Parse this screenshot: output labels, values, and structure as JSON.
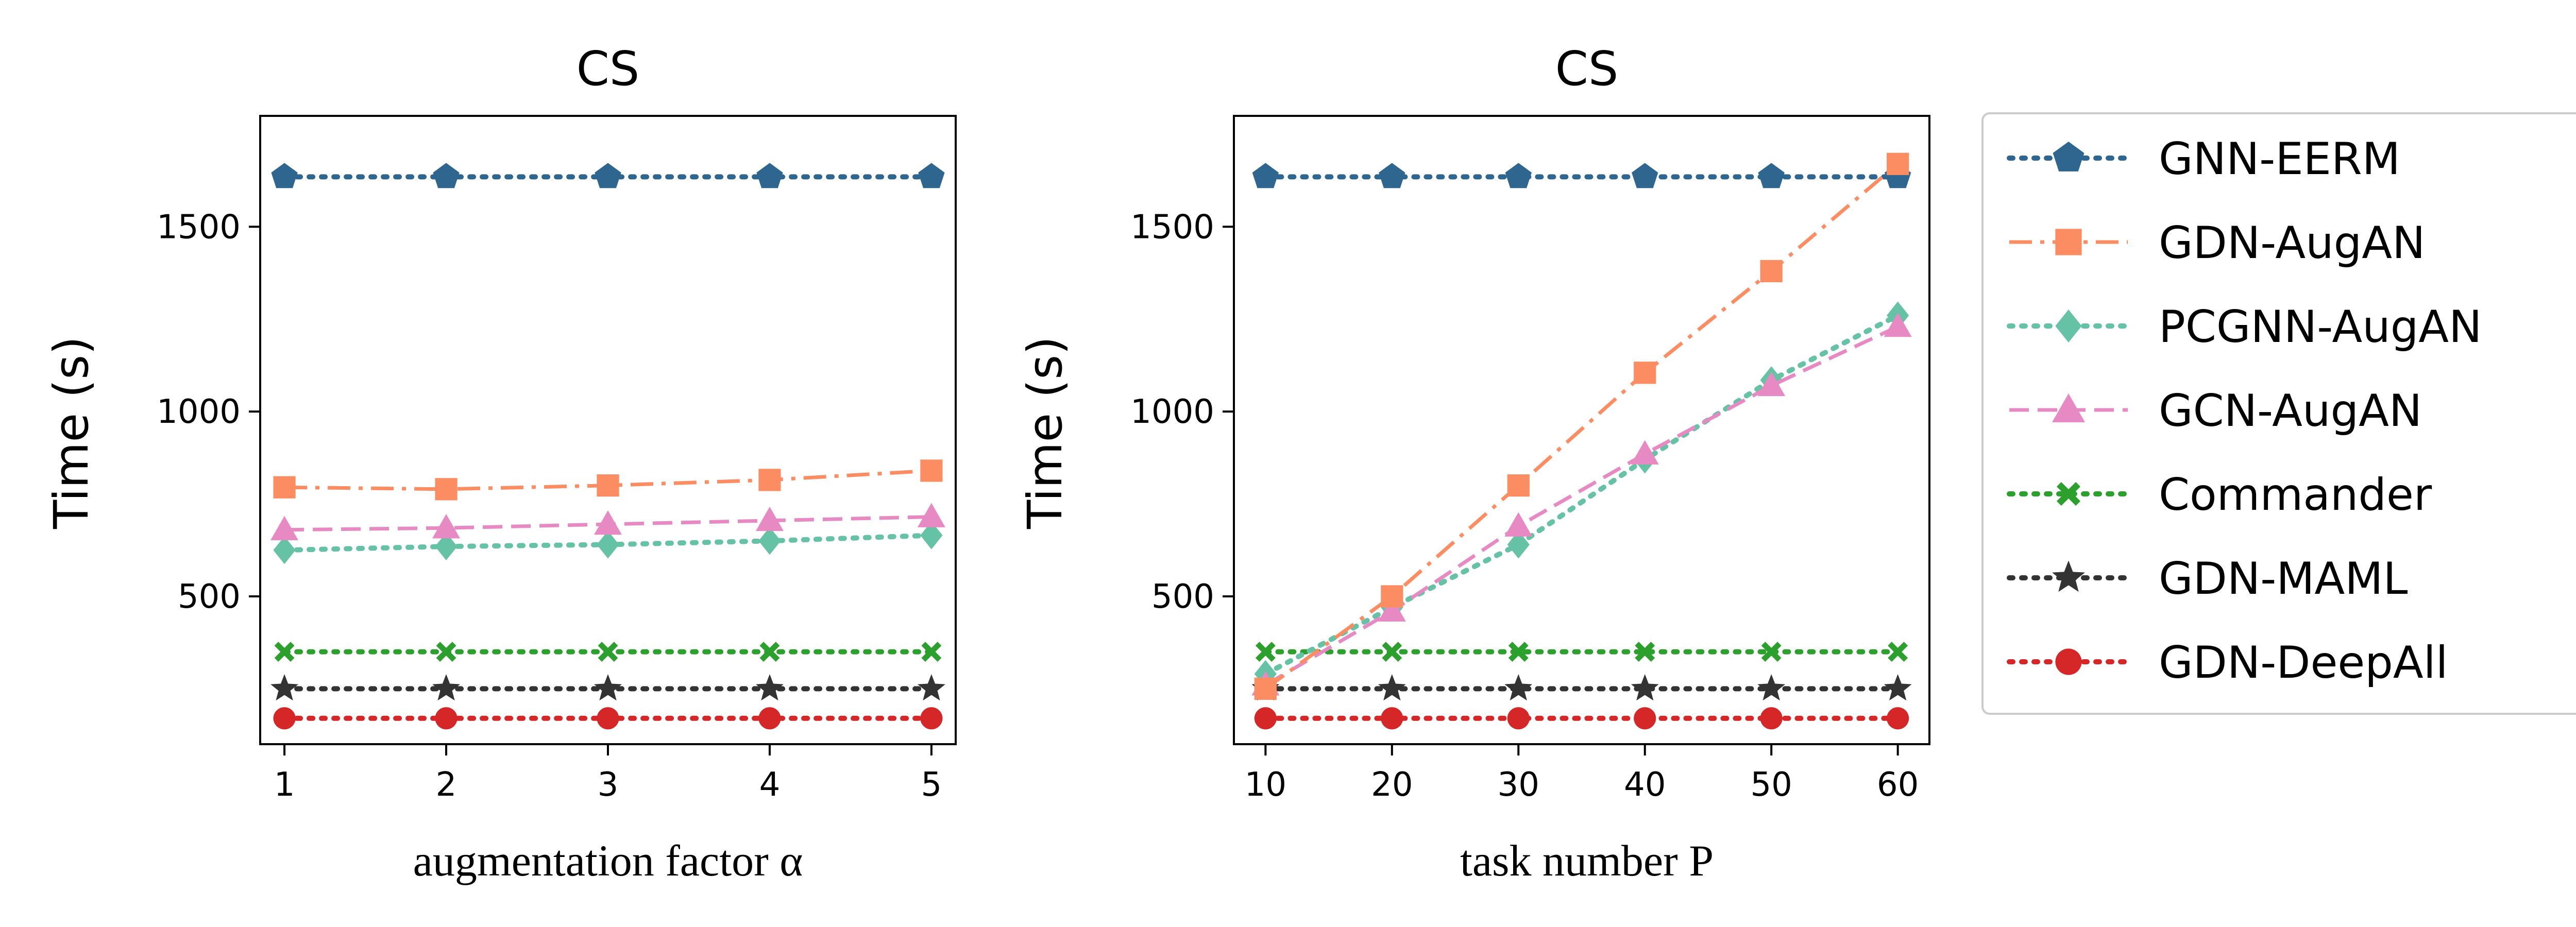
{
  "chart_data": [
    {
      "type": "line",
      "title": "CS",
      "xlabel": "augmentation factor α",
      "ylabel": "Time (s)",
      "x": [
        1,
        2,
        3,
        4,
        5
      ],
      "xticks": [
        "1",
        "2",
        "3",
        "4",
        "5"
      ],
      "xlim": [
        0.85,
        5.15
      ],
      "yticks": [
        "500",
        "1000",
        "1500"
      ],
      "ylim": [
        100,
        1800
      ],
      "grid": false,
      "series": [
        {
          "name": "GNN-EERM",
          "values": [
            1635,
            1635,
            1635,
            1635,
            1635
          ]
        },
        {
          "name": "GDN-AugAN",
          "values": [
            795,
            790,
            800,
            815,
            840
          ]
        },
        {
          "name": "PCGNN-AugAN",
          "values": [
            625,
            635,
            640,
            650,
            665
          ]
        },
        {
          "name": "GCN-AugAN",
          "values": [
            680,
            685,
            695,
            705,
            715
          ]
        },
        {
          "name": "Commander",
          "values": [
            350,
            350,
            350,
            350,
            350
          ]
        },
        {
          "name": "GDN-MAML",
          "values": [
            250,
            250,
            250,
            250,
            250
          ]
        },
        {
          "name": "GDN-DeepAll",
          "values": [
            170,
            170,
            170,
            170,
            170
          ]
        }
      ]
    },
    {
      "type": "line",
      "title": "CS",
      "xlabel": "task number P",
      "ylabel": "Time (s)",
      "x": [
        10,
        20,
        30,
        40,
        50,
        60
      ],
      "xticks": [
        "10",
        "20",
        "30",
        "40",
        "50",
        "60"
      ],
      "xlim": [
        7.5,
        62.5
      ],
      "yticks": [
        "500",
        "1000",
        "1500"
      ],
      "ylim": [
        100,
        1800
      ],
      "grid": false,
      "series": [
        {
          "name": "GNN-EERM",
          "values": [
            1635,
            1635,
            1635,
            1635,
            1635,
            1635
          ]
        },
        {
          "name": "GDN-AugAN",
          "values": [
            250,
            500,
            800,
            1105,
            1380,
            1670
          ]
        },
        {
          "name": "PCGNN-AugAN",
          "values": [
            290,
            470,
            640,
            870,
            1085,
            1260
          ]
        },
        {
          "name": "GCN-AugAN",
          "values": [
            260,
            460,
            690,
            885,
            1070,
            1230
          ]
        },
        {
          "name": "Commander",
          "values": [
            350,
            350,
            350,
            350,
            350,
            350
          ]
        },
        {
          "name": "GDN-MAML",
          "values": [
            250,
            250,
            250,
            250,
            250,
            250
          ]
        },
        {
          "name": "GDN-DeepAll",
          "values": [
            170,
            170,
            170,
            170,
            170,
            170
          ]
        }
      ]
    }
  ],
  "legend": {
    "placement": "right",
    "entries": [
      "GNN-EERM",
      "GDN-AugAN",
      "PCGNN-AugAN",
      "GCN-AugAN",
      "Commander",
      "GDN-MAML",
      "GDN-DeepAll"
    ]
  },
  "styles": {
    "GNN-EERM": {
      "color": "#2f6690",
      "dash": "dot",
      "marker": "pentagon"
    },
    "GDN-AugAN": {
      "color": "#fc8d62",
      "dash": "dashdot",
      "marker": "square"
    },
    "PCGNN-AugAN": {
      "color": "#66c2a5",
      "dash": "dot",
      "marker": "diamond"
    },
    "GCN-AugAN": {
      "color": "#e78ac3",
      "dash": "dash",
      "marker": "triangle"
    },
    "Commander": {
      "color": "#2ca02c",
      "dash": "dot",
      "marker": "x"
    },
    "GDN-MAML": {
      "color": "#333333",
      "dash": "dot",
      "marker": "star"
    },
    "GDN-DeepAll": {
      "color": "#d62728",
      "dash": "dot",
      "marker": "circle"
    }
  }
}
